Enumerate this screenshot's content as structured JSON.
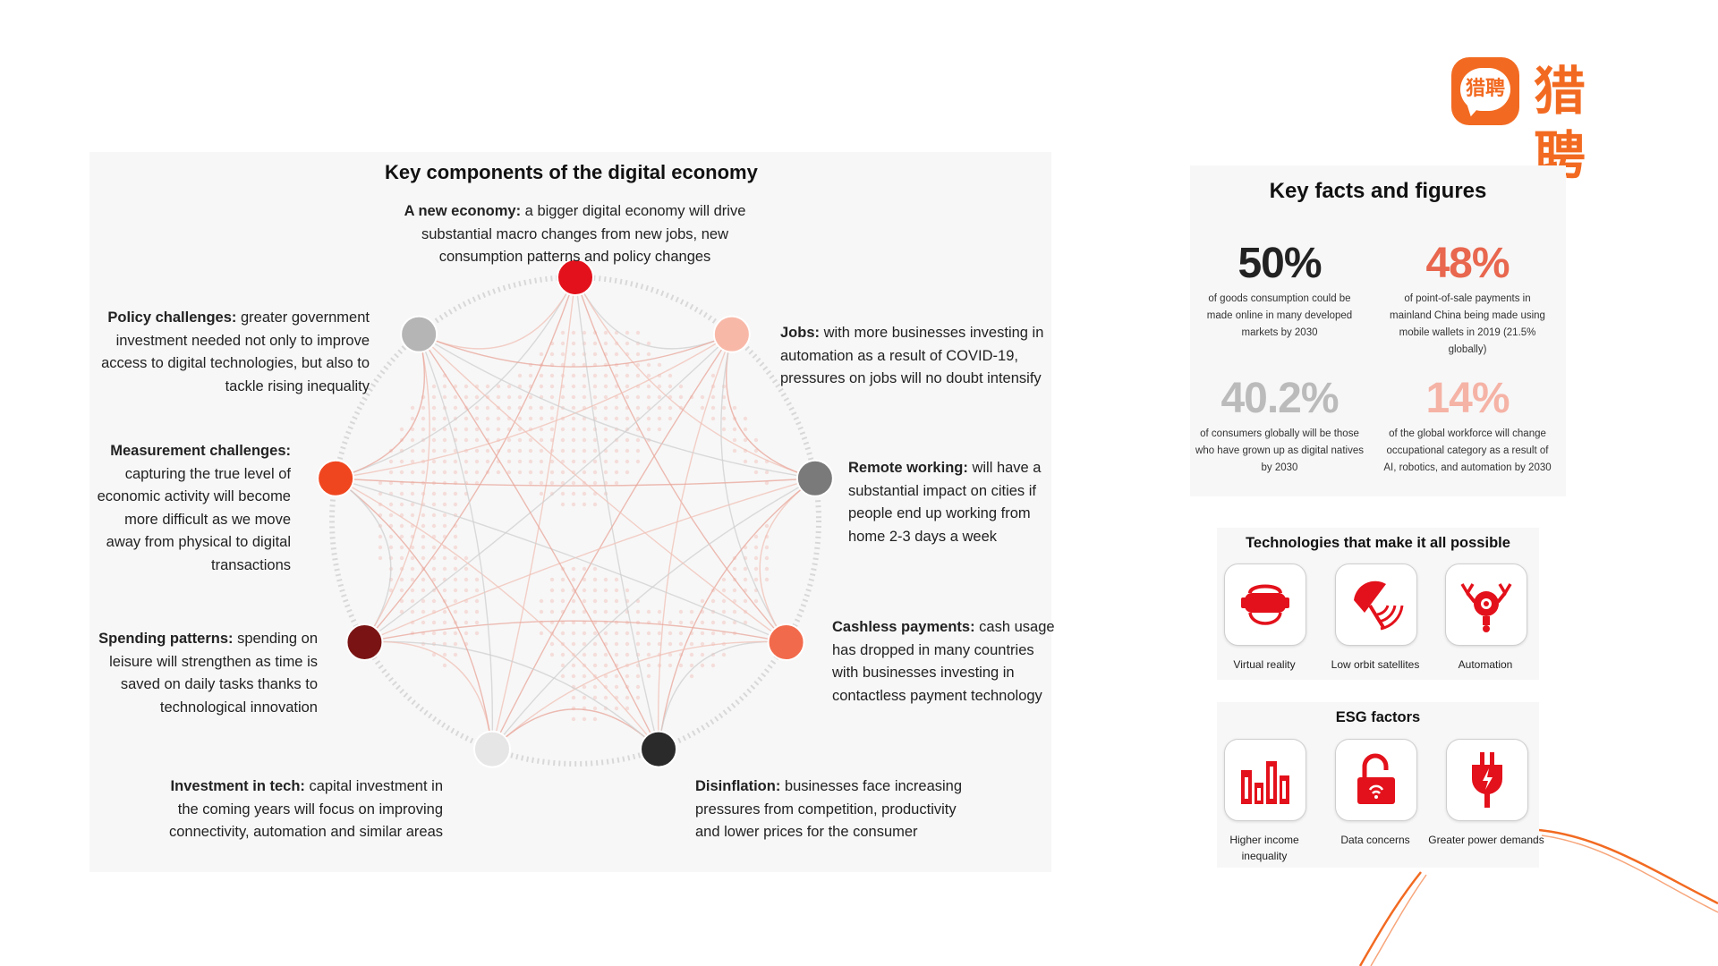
{
  "logo": {
    "mark_text": "猎聘",
    "word": "猎聘",
    "color": "#f26a21"
  },
  "diagram": {
    "title": "Key components of the digital economy",
    "components": [
      {
        "id": "new-economy",
        "heading": "A new economy:",
        "text": " a bigger digital economy will drive substantial macro changes from new jobs, new consumption patterns and policy changes",
        "node_color": "#e3111b"
      },
      {
        "id": "jobs",
        "heading": "Jobs:",
        "text": " with more businesses investing in automation as a result of COVID-19, pressures on jobs will no doubt intensify",
        "node_color": "#f8b8a8"
      },
      {
        "id": "remote-working",
        "heading": "Remote working:",
        "text": " will have a substantial impact on cities if people end up working from home 2-3 days a week",
        "node_color": "#7a7a7a"
      },
      {
        "id": "cashless-payments",
        "heading": "Cashless payments:",
        "text": " cash usage has dropped in many countries with businesses investing in contactless payment technology",
        "node_color": "#f26a4c"
      },
      {
        "id": "disinflation",
        "heading": "Disinflation:",
        "text": " businesses face increasing pressures from competition, productivity and lower prices for the consumer",
        "node_color": "#2a2a2a"
      },
      {
        "id": "investment-in-tech",
        "heading": "Investment in tech:",
        "text": " capital investment in the coming years will focus on improving connectivity, automation and similar areas",
        "node_color": "#e6e6e6"
      },
      {
        "id": "spending-patterns",
        "heading": "Spending patterns:",
        "text": " spending on leisure will strengthen as time is saved on daily tasks thanks to technological innovation",
        "node_color": "#7a1414"
      },
      {
        "id": "measurement-challenges",
        "heading": "Measurement challenges:",
        "text": " capturing the true level of economic activity will become more difficult as we move away from physical to digital transactions",
        "node_color": "#f0461f"
      },
      {
        "id": "policy-challenges",
        "heading": "Policy challenges:",
        "text": " greater government investment needed not only to improve access to digital technologies, but also to tackle rising inequality",
        "node_color": "#b5b5b5"
      }
    ]
  },
  "facts": {
    "title": "Key facts and figures",
    "items": [
      {
        "value": "50%",
        "text": "of goods consumption could be made online in many developed markets by 2030",
        "color": "#222222"
      },
      {
        "value": "48%",
        "text": "of point-of-sale payments in mainland China being made using mobile wallets in 2019 (21.5% globally)",
        "color": "#e8674e"
      },
      {
        "value": "40.2%",
        "text": "of consumers globally will be those who have grown up as digital natives by 2030",
        "color": "#bbbbbb"
      },
      {
        "value": "14%",
        "text": "of the global workforce will change occupational category as a result of AI, robotics, and automation by 2030",
        "color": "#f5b3a6"
      }
    ]
  },
  "technologies": {
    "title": "Technologies that make it all possible",
    "items": [
      {
        "label": "Virtual reality",
        "icon": "vr-headset-icon"
      },
      {
        "label": "Low orbit satellites",
        "icon": "satellite-dish-icon"
      },
      {
        "label": "Automation",
        "icon": "robot-arm-icon"
      }
    ]
  },
  "esg": {
    "title": "ESG factors",
    "items": [
      {
        "label": "Higher income inequality",
        "icon": "bar-chart-icon"
      },
      {
        "label": "Data concerns",
        "icon": "unlocked-padlock-icon"
      },
      {
        "label": "Greater power demands",
        "icon": "power-plug-icon"
      }
    ]
  },
  "accent_color": "#e3111b"
}
